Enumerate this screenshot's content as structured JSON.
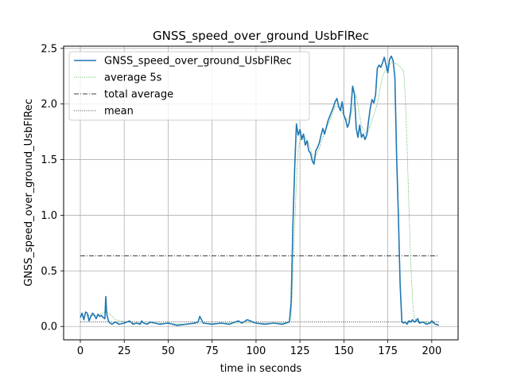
{
  "chart_data": {
    "type": "line",
    "title": "GNSS_speed_over_ground_UsbFlRec",
    "xlabel": "time in seconds",
    "ylabel": "GNSS_speed_over_ground_UsbFlRec",
    "xlim": [
      -9.5,
      215
    ],
    "ylim": [
      -0.12,
      2.52
    ],
    "xticks": [
      0,
      25,
      50,
      75,
      100,
      125,
      150,
      175,
      200
    ],
    "xtick_labels": [
      "0",
      "25",
      "50",
      "75",
      "100",
      "125",
      "150",
      "175",
      "200"
    ],
    "yticks": [
      0.0,
      0.5,
      1.0,
      1.5,
      2.0,
      2.5
    ],
    "ytick_labels": [
      "0.0",
      "0.5",
      "1.0",
      "1.5",
      "2.0",
      "2.5"
    ],
    "grid": true,
    "legend_position": "top-left",
    "series": [
      {
        "name": "GNSS_speed_over_ground_UsbFlRec",
        "style": "solid",
        "color": "#1f77b4",
        "x": [
          0,
          1,
          2,
          3,
          4,
          5,
          6,
          7,
          8,
          9,
          10,
          11,
          12,
          13,
          14,
          14.5,
          15,
          16,
          17,
          18,
          20,
          22,
          25,
          28,
          30,
          32,
          34,
          35,
          36,
          38,
          40,
          45,
          50,
          55,
          60,
          65,
          67,
          68,
          70,
          75,
          80,
          85,
          88,
          90,
          92,
          95,
          100,
          105,
          110,
          115,
          119,
          120,
          121,
          122,
          123,
          124,
          125,
          126,
          127,
          128,
          129,
          130,
          131,
          132,
          133,
          134,
          135,
          136,
          137,
          138,
          139,
          140,
          141,
          142,
          143,
          144,
          145,
          146,
          147,
          148,
          149,
          150,
          151,
          152,
          153,
          154,
          155,
          156,
          157,
          158,
          159,
          160,
          161,
          162,
          163,
          164,
          165,
          166,
          167,
          168,
          169,
          170,
          171,
          172,
          173,
          174,
          175,
          176,
          177,
          178,
          179,
          180,
          181,
          182,
          183,
          184,
          185,
          186,
          187,
          188,
          189,
          190,
          191,
          192,
          193,
          195,
          197,
          199,
          200,
          202,
          204
        ],
        "values": [
          0.08,
          0.12,
          0.06,
          0.13,
          0.12,
          0.05,
          0.09,
          0.12,
          0.1,
          0.07,
          0.11,
          0.09,
          0.1,
          0.08,
          0.07,
          0.27,
          0.12,
          0.05,
          0.03,
          0.02,
          0.04,
          0.02,
          0.03,
          0.05,
          0.02,
          0.03,
          0.02,
          0.05,
          0.03,
          0.02,
          0.04,
          0.02,
          0.03,
          0.01,
          0.02,
          0.03,
          0.04,
          0.09,
          0.03,
          0.02,
          0.03,
          0.02,
          0.04,
          0.05,
          0.03,
          0.06,
          0.03,
          0.02,
          0.03,
          0.02,
          0.04,
          0.22,
          0.92,
          1.42,
          1.82,
          1.72,
          1.77,
          1.68,
          1.73,
          1.63,
          1.67,
          1.58,
          1.56,
          1.49,
          1.46,
          1.58,
          1.61,
          1.65,
          1.72,
          1.78,
          1.73,
          1.79,
          1.85,
          1.89,
          1.93,
          1.97,
          2.02,
          2.05,
          1.98,
          1.94,
          2.02,
          1.9,
          1.86,
          1.79,
          1.83,
          1.96,
          2.16,
          2.09,
          1.78,
          1.7,
          1.81,
          1.7,
          1.73,
          1.68,
          1.72,
          1.84,
          1.96,
          2.04,
          2.01,
          2.08,
          2.32,
          2.35,
          2.33,
          2.37,
          2.42,
          2.35,
          2.28,
          2.4,
          2.43,
          2.39,
          2.24,
          1.53,
          1.0,
          0.38,
          0.04,
          0.03,
          0.04,
          0.02,
          0.05,
          0.04,
          0.06,
          0.04,
          0.05,
          0.07,
          0.03,
          0.04,
          0.02,
          0.03,
          0.05,
          0.02,
          0.01
        ]
      },
      {
        "name": "average 5s",
        "style": "dotted",
        "color": "#2ca02c",
        "x": [
          0,
          5,
          10,
          15,
          20,
          30,
          40,
          60,
          80,
          100,
          115,
          119,
          120,
          121,
          122,
          123,
          124,
          126,
          128,
          130,
          133,
          136,
          139,
          142,
          145,
          148,
          151,
          154,
          157,
          160,
          163,
          166,
          169,
          172,
          175,
          178,
          181,
          184,
          185,
          186,
          187,
          188,
          189,
          190,
          192,
          196,
          200,
          204
        ],
        "values": [
          0.08,
          0.1,
          0.1,
          0.14,
          0.06,
          0.03,
          0.03,
          0.02,
          0.03,
          0.03,
          0.03,
          0.04,
          0.1,
          0.45,
          0.9,
          1.3,
          1.6,
          1.72,
          1.7,
          1.65,
          1.5,
          1.6,
          1.75,
          1.85,
          1.98,
          1.97,
          1.85,
          1.9,
          2.08,
          1.8,
          1.72,
          1.85,
          2.0,
          2.25,
          2.35,
          2.38,
          2.35,
          2.3,
          2.05,
          1.6,
          1.1,
          0.6,
          0.25,
          0.08,
          0.04,
          0.04,
          0.03,
          0.02
        ]
      },
      {
        "name": "total average",
        "style": "dashdot",
        "color": "#000000",
        "x": [
          0,
          204
        ],
        "values": [
          0.635,
          0.635
        ]
      },
      {
        "name": "mean",
        "style": "dotted",
        "color": "#000000",
        "x": [
          0,
          204
        ],
        "values": [
          0.04,
          0.04
        ]
      }
    ]
  }
}
